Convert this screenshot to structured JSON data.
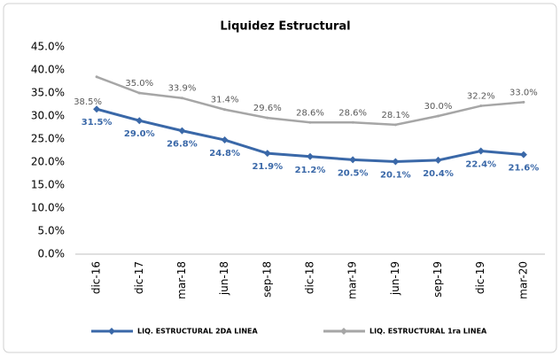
{
  "chart_data": {
    "type": "line",
    "title": "Liquidez Estructural",
    "categories": [
      "dic-16",
      "dic-17",
      "mar-18",
      "jun-18",
      "sep-18",
      "dic-18",
      "mar-19",
      "jun-19",
      "sep-19",
      "dic-19",
      "mar-20"
    ],
    "series": [
      {
        "name": "LIQ. ESTRUCTURAL 2DA LINEA",
        "color": "#3a68a8",
        "values": [
          31.5,
          29.0,
          26.8,
          24.8,
          21.9,
          21.2,
          20.5,
          20.1,
          20.4,
          22.4,
          21.6
        ],
        "value_labels": [
          "31.5%",
          "29.0%",
          "26.8%",
          "24.8%",
          "21.9%",
          "21.2%",
          "20.5%",
          "20.1%",
          "20.4%",
          "22.4%",
          "21.6%"
        ]
      },
      {
        "name": "LIQ. ESTRUCTURAL 1ra LINEA",
        "color": "#a6a6a6",
        "values": [
          38.5,
          35.0,
          33.9,
          31.4,
          29.6,
          28.6,
          28.6,
          28.1,
          30.0,
          32.2,
          33.0
        ],
        "value_labels": [
          "38.5%",
          "35.0%",
          "33.9%",
          "31.4%",
          "29.6%",
          "28.6%",
          "28.6%",
          "28.1%",
          "30.0%",
          "32.2%",
          "33.0%"
        ]
      }
    ],
    "ylim": [
      0,
      45
    ],
    "yticks": [
      {
        "value": 0,
        "label": "0.0%"
      },
      {
        "value": 5,
        "label": "5.0%"
      },
      {
        "value": 10,
        "label": "10.0%"
      },
      {
        "value": 15,
        "label": "15.0%"
      },
      {
        "value": 20,
        "label": "20.0%"
      },
      {
        "value": 25,
        "label": "25.0%"
      },
      {
        "value": 30,
        "label": "30.0%"
      },
      {
        "value": 35,
        "label": "35.0%"
      },
      {
        "value": 40,
        "label": "40.0%"
      },
      {
        "value": 45,
        "label": "45.0%"
      }
    ],
    "grid": false,
    "legend": "bottom"
  }
}
